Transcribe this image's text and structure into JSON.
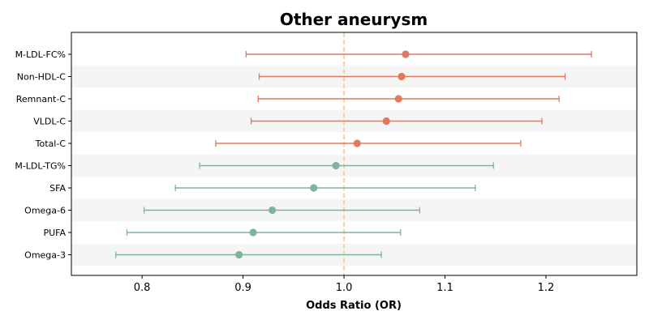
{
  "chart_data": {
    "type": "forest",
    "title": "Other aneurysm",
    "xlabel": "Odds Ratio (OR)",
    "ylabel": "",
    "xlim": [
      0.73,
      1.29
    ],
    "xticks": [
      0.8,
      0.9,
      1.0,
      1.1,
      1.2
    ],
    "xtick_labels": [
      "0.8",
      "0.9",
      "1.0",
      "1.1",
      "1.2"
    ],
    "reference_line": 1.0,
    "grid": false,
    "legend": "none",
    "colors": {
      "positive": "#e07a5f",
      "negative": "#81b29a",
      "reference": "#f2cc8f",
      "band": "#f5f5f5"
    },
    "categories": [
      "M-LDL-FC%",
      "Non-HDL-C",
      "Remnant-C",
      "VLDL-C",
      "Total-C",
      "M-LDL-TG%",
      "SFA",
      "Omega-6",
      "PUFA",
      "Omega-3"
    ],
    "or": [
      1.061,
      1.057,
      1.054,
      1.042,
      1.013,
      0.992,
      0.97,
      0.929,
      0.91,
      0.896
    ],
    "ci_lower": [
      0.903,
      0.916,
      0.915,
      0.908,
      0.873,
      0.857,
      0.833,
      0.802,
      0.785,
      0.774
    ],
    "ci_upper": [
      1.245,
      1.219,
      1.213,
      1.196,
      1.175,
      1.148,
      1.13,
      1.075,
      1.056,
      1.037
    ]
  }
}
